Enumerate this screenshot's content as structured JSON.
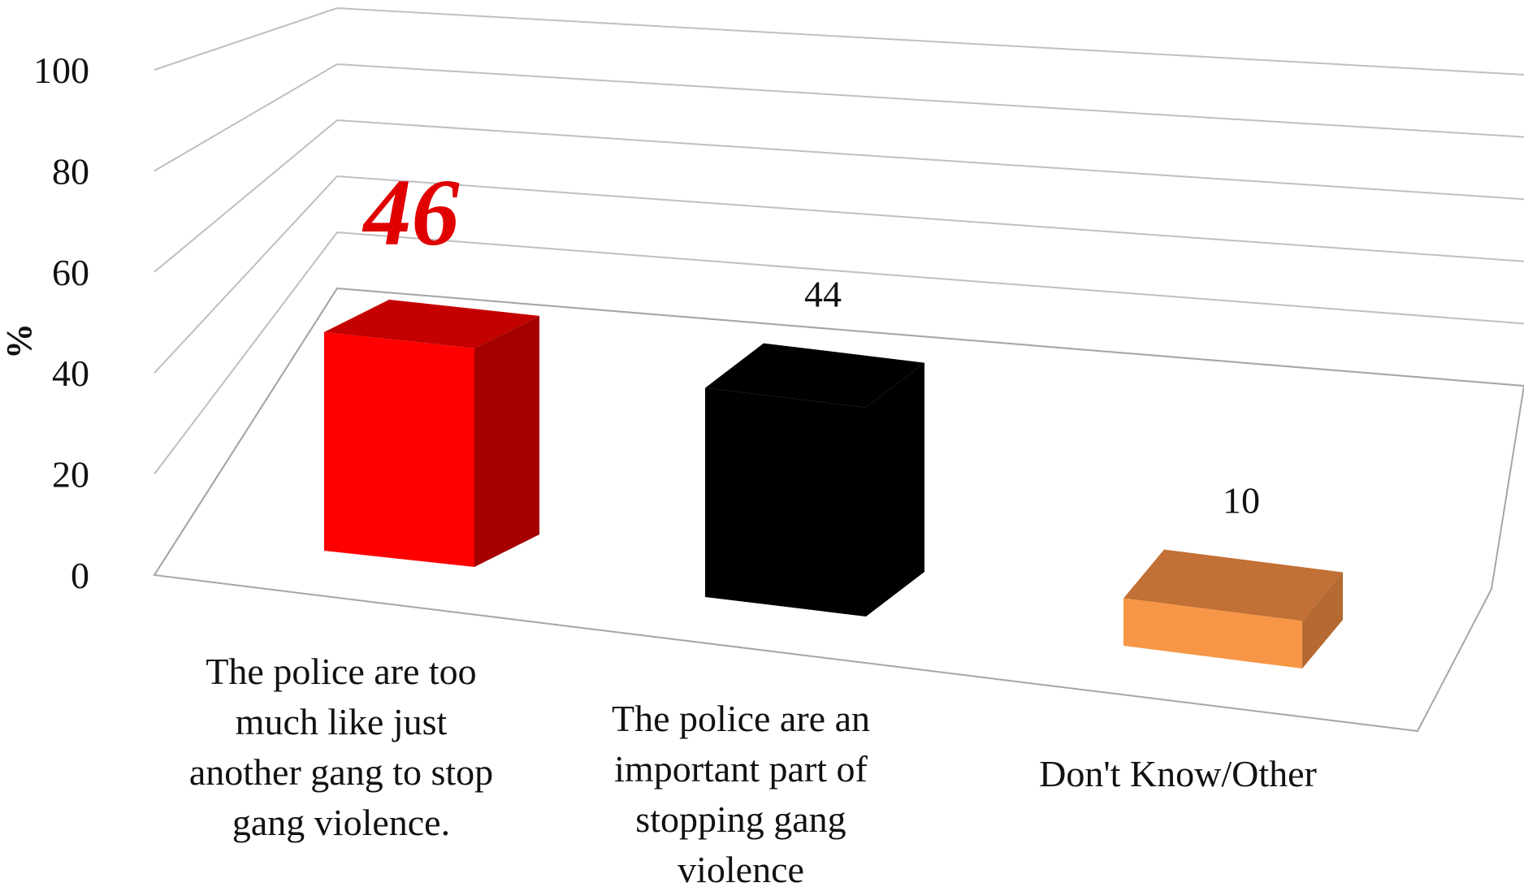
{
  "chart_data": {
    "type": "bar",
    "style": "3d-column",
    "categories": [
      "The police are too much like just another gang to stop gang violence.",
      "The police are an important part of stopping gang violence",
      "Don't Know/Other"
    ],
    "category_label_lines": [
      [
        "The police are too",
        "much like just",
        "another gang to stop",
        "gang violence."
      ],
      [
        "The police are an",
        "important part of",
        "stopping gang",
        "violence"
      ],
      [
        "Don't Know/Other"
      ]
    ],
    "values": [
      46,
      44,
      10
    ],
    "data_labels": [
      "46",
      "44",
      "10"
    ],
    "highlighted_index": 0,
    "ylabel": "%",
    "xlabel": "",
    "title": "",
    "ylim": [
      0,
      100
    ],
    "y_ticks": [
      "0",
      "20",
      "40",
      "60",
      "80",
      "100"
    ],
    "grid": true,
    "legend": "none",
    "colors": {
      "bar_front": [
        "#ff0000",
        "#000000",
        "#f79646"
      ],
      "bar_side": [
        "#a50000",
        "#000000",
        "#b46a32"
      ],
      "bar_top": [
        "#c40000",
        "#000000",
        "#c27035"
      ],
      "highlight_label": "#e00000",
      "gridline": "#bfbfbf",
      "floor": "#a6a6a6"
    }
  }
}
